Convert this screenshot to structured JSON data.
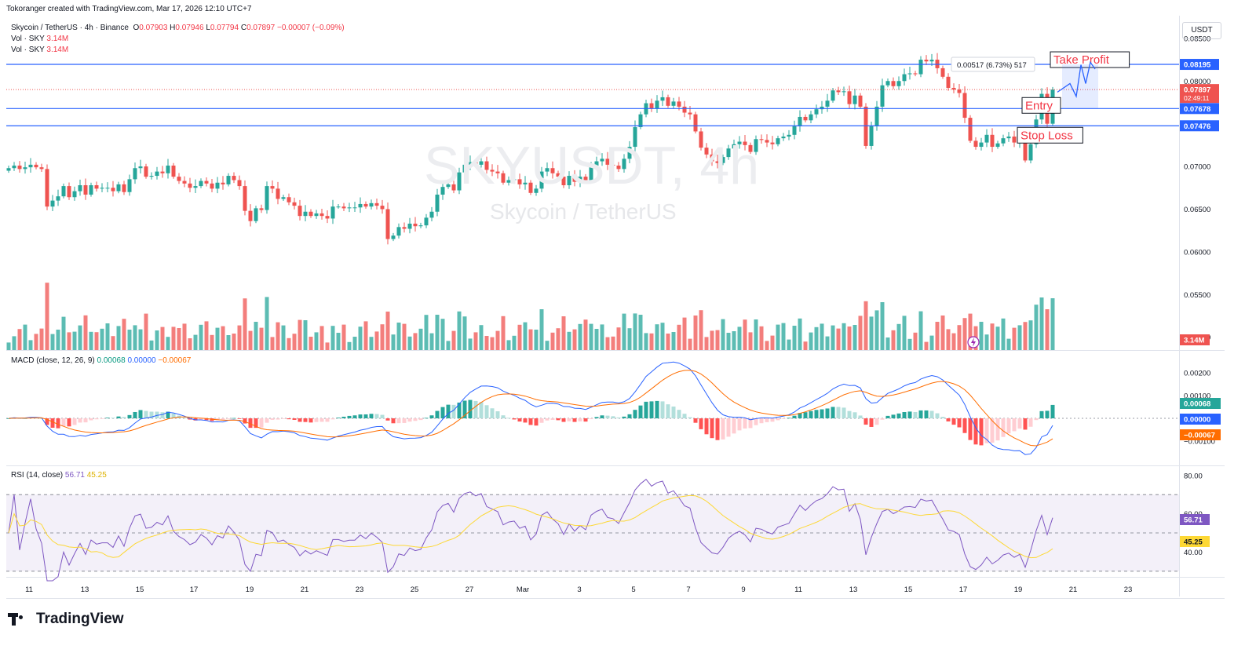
{
  "header": {
    "credit": "Tokoranger created with TradingView.com, Mar 17, 2026 12:10 UTC+7",
    "symbol": "Skycoin / TetherUS · 4h · Binance",
    "ohlc_o_label": "O",
    "ohlc_o": "0.07903",
    "ohlc_h_label": "H",
    "ohlc_h": "0.07946",
    "ohlc_l_label": "L",
    "ohlc_l": "0.07794",
    "ohlc_c_label": "C",
    "ohlc_c": "0.07897",
    "change": "−0.00007 (−0.09%)",
    "vol_label": "Vol · SKY",
    "vol_value": "3.14M",
    "macd_label": "MACD (close, 12, 26, 9)",
    "macd_hist": "0.00068",
    "macd_line": "0.00000",
    "macd_signal": "−0.00067",
    "rsi_label": "RSI (14, close)",
    "rsi_value": "56.71",
    "rsi_ma": "45.25",
    "currency": "USDT"
  },
  "watermark": {
    "symbol": "SKYUSDT, 4h",
    "name": "Skycoin / TetherUS"
  },
  "brand": "TradingView",
  "colors": {
    "up": "#26a69a",
    "down": "#ef5350",
    "level": "#2962ff",
    "annot_text": "#f23645",
    "macd": "#2962ff",
    "signal": "#ff6d00",
    "rsi": "#7e57c2",
    "rsi_ma": "#fdd835"
  },
  "chart_data": {
    "type": "candlestick",
    "title": "SKYUSDT, 4h",
    "x_ticks": [
      "11",
      "13",
      "15",
      "17",
      "19",
      "21",
      "23",
      "25",
      "27",
      "Mar",
      "3",
      "5",
      "7",
      "9",
      "11",
      "13",
      "15",
      "17",
      "19",
      "21",
      "23"
    ],
    "price_axis": {
      "ticks": [
        "0.08500",
        "0.08000",
        "0.07000",
        "0.06500",
        "0.06000",
        "0.05500",
        "0.05000"
      ],
      "range": [
        0.0485,
        0.0871
      ]
    },
    "levels": [
      {
        "name": "Take Profit",
        "price": 0.08195,
        "label": "0.08195"
      },
      {
        "name": "Entry",
        "price": 0.07678,
        "label": "0.07678"
      },
      {
        "name": "Stop Loss",
        "price": 0.07476,
        "label": "0.07476"
      }
    ],
    "last_price": {
      "label": "0.07897",
      "countdown": "02:49:11"
    },
    "measure_label": "0.00517 (6.73%) 517",
    "annotations": [
      "Take Profit",
      "Entry",
      "Stop Loss"
    ],
    "closes": [
      0.0698,
      0.0701,
      0.0697,
      0.0699,
      0.0702,
      0.0699,
      0.0697,
      0.0653,
      0.066,
      0.0665,
      0.0677,
      0.0664,
      0.0671,
      0.0678,
      0.0667,
      0.0678,
      0.0674,
      0.0675,
      0.0675,
      0.0671,
      0.0679,
      0.067,
      0.0685,
      0.0698,
      0.07,
      0.0688,
      0.0689,
      0.0694,
      0.0692,
      0.0701,
      0.0688,
      0.0683,
      0.068,
      0.0675,
      0.0677,
      0.0683,
      0.068,
      0.0674,
      0.0681,
      0.0679,
      0.0689,
      0.0684,
      0.0677,
      0.0648,
      0.0636,
      0.0651,
      0.0649,
      0.0677,
      0.0674,
      0.0662,
      0.0664,
      0.0658,
      0.0654,
      0.0642,
      0.0647,
      0.0642,
      0.0645,
      0.0642,
      0.0639,
      0.0653,
      0.0653,
      0.0651,
      0.0652,
      0.0652,
      0.0656,
      0.0653,
      0.0657,
      0.0654,
      0.065,
      0.0615,
      0.0619,
      0.0629,
      0.0627,
      0.0633,
      0.063,
      0.0631,
      0.064,
      0.0647,
      0.0667,
      0.0676,
      0.0679,
      0.0672,
      0.0693,
      0.0702,
      0.0705,
      0.0702,
      0.0706,
      0.0696,
      0.0694,
      0.0692,
      0.0681,
      0.0684,
      0.0685,
      0.0679,
      0.0681,
      0.0669,
      0.0674,
      0.0694,
      0.0698,
      0.0692,
      0.0688,
      0.0678,
      0.0689,
      0.0682,
      0.0688,
      0.0684,
      0.0701,
      0.0706,
      0.0709,
      0.0702,
      0.0701,
      0.0697,
      0.0709,
      0.0723,
      0.0746,
      0.0761,
      0.0774,
      0.0768,
      0.0777,
      0.0781,
      0.0771,
      0.0776,
      0.077,
      0.0763,
      0.0761,
      0.0741,
      0.0722,
      0.0714,
      0.0706,
      0.0704,
      0.0711,
      0.0721,
      0.0726,
      0.0729,
      0.0725,
      0.0717,
      0.0732,
      0.0731,
      0.0728,
      0.0726,
      0.0733,
      0.0735,
      0.0737,
      0.0747,
      0.0758,
      0.0754,
      0.0761,
      0.0767,
      0.077,
      0.0777,
      0.0789,
      0.0787,
      0.0788,
      0.0773,
      0.0783,
      0.077,
      0.0724,
      0.0747,
      0.077,
      0.0795,
      0.08,
      0.0794,
      0.08,
      0.0808,
      0.0809,
      0.0808,
      0.0825,
      0.0823,
      0.0825,
      0.0815,
      0.0805,
      0.0792,
      0.079,
      0.0786,
      0.0757,
      0.073,
      0.0723,
      0.0728,
      0.0737,
      0.0723,
      0.0727,
      0.0733,
      0.0735,
      0.0728,
      0.0731,
      0.0707,
      0.0726,
      0.0755,
      0.0785,
      0.075,
      0.079
    ],
    "volume_axis_label": "3.14M",
    "macd": {
      "hist_last": "0.00068",
      "macd_last": "0.00000",
      "signal_last": "−0.00067",
      "ticks": [
        "0.00200",
        "0.00100",
        "−0.00100"
      ]
    },
    "rsi": {
      "value": "56.71",
      "ma": "45.25",
      "ticks": [
        "80.00",
        "60.00",
        "40.00"
      ],
      "bands": [
        70,
        30
      ]
    }
  }
}
